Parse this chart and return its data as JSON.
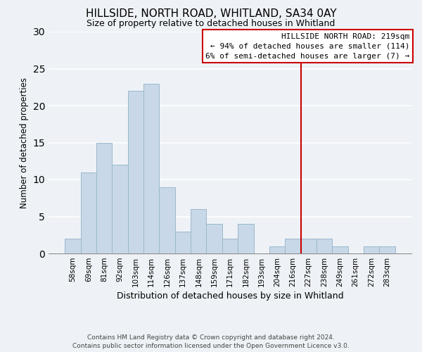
{
  "title": "HILLSIDE, NORTH ROAD, WHITLAND, SA34 0AY",
  "subtitle": "Size of property relative to detached houses in Whitland",
  "xlabel": "Distribution of detached houses by size in Whitland",
  "ylabel": "Number of detached properties",
  "bar_labels": [
    "58sqm",
    "69sqm",
    "81sqm",
    "92sqm",
    "103sqm",
    "114sqm",
    "126sqm",
    "137sqm",
    "148sqm",
    "159sqm",
    "171sqm",
    "182sqm",
    "193sqm",
    "204sqm",
    "216sqm",
    "227sqm",
    "238sqm",
    "249sqm",
    "261sqm",
    "272sqm",
    "283sqm"
  ],
  "bar_values": [
    2,
    11,
    15,
    12,
    22,
    23,
    9,
    3,
    6,
    4,
    2,
    4,
    0,
    1,
    2,
    2,
    2,
    1,
    0,
    1,
    1
  ],
  "bar_color": "#c8d8e8",
  "bar_edgecolor": "#9ab8cc",
  "vline_x": 14.5,
  "vline_color": "#cc0000",
  "annotation_title": "HILLSIDE NORTH ROAD: 219sqm",
  "annotation_line1": "← 94% of detached houses are smaller (114)",
  "annotation_line2": "6% of semi-detached houses are larger (7) →",
  "annotation_box_color": "#ffffff",
  "annotation_box_edgecolor": "#cc0000",
  "ylim": [
    0,
    30
  ],
  "yticks": [
    0,
    5,
    10,
    15,
    20,
    25,
    30
  ],
  "footer1": "Contains HM Land Registry data © Crown copyright and database right 2024.",
  "footer2": "Contains public sector information licensed under the Open Government Licence v3.0.",
  "background_color": "#eef2f6",
  "grid_color": "#ffffff",
  "title_fontsize": 11,
  "subtitle_fontsize": 9,
  "ylabel_fontsize": 8.5,
  "xlabel_fontsize": 9,
  "tick_fontsize": 7.5,
  "annotation_fontsize": 8,
  "footer_fontsize": 6.5
}
